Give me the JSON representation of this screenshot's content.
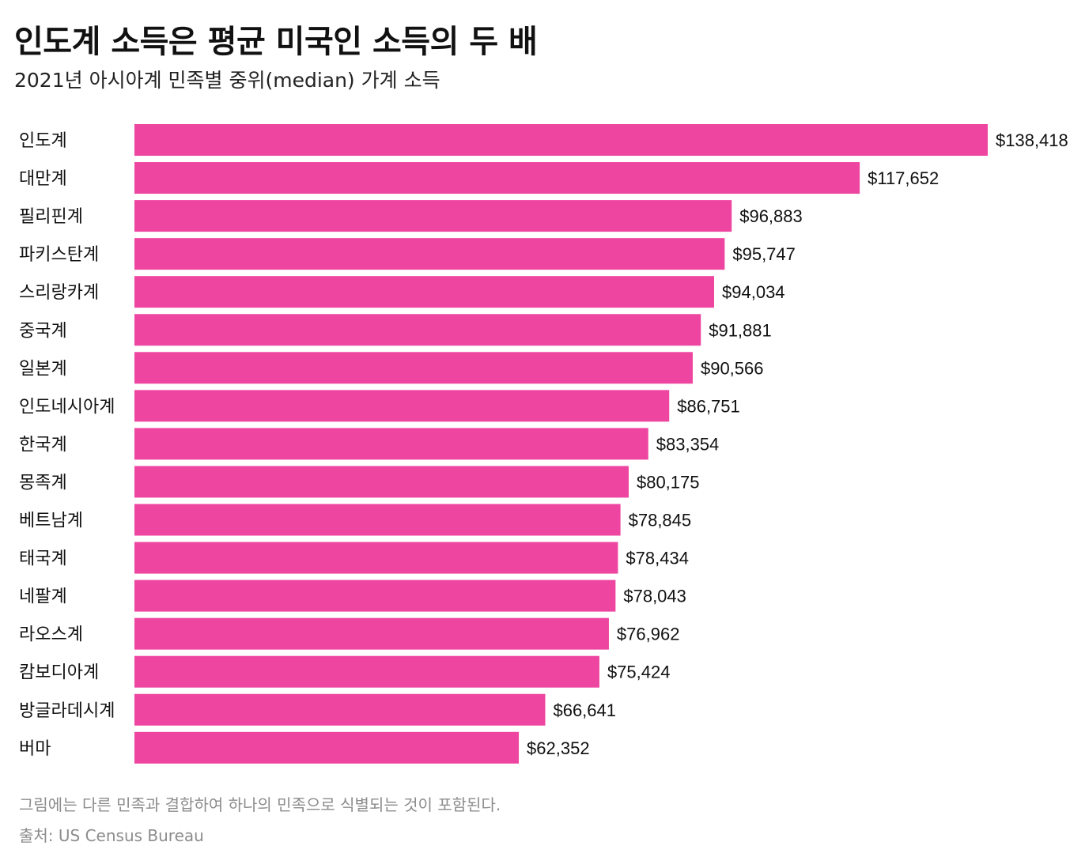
{
  "title": "인도계 소득은 평균 미국인 소득의 두 배",
  "subtitle": "2021년 아시아계 민족별 중위(median) 가계 소득",
  "footnote": "그림에는 다른 민족과 결합하여 하나의 민족으로 식별되는 것이 포함된다.",
  "source": "출처: US Census Bureau",
  "colors": {
    "bar": "#ee45a0",
    "text": "#111111",
    "muted": "#8c8c8c"
  },
  "chart_data": {
    "type": "bar",
    "orientation": "horizontal",
    "categories": [
      "인도계",
      "대만계",
      "필리핀계",
      "파키스탄계",
      "스리랑카계",
      "중국계",
      "일본계",
      "인도네시아계",
      "한국계",
      "몽족계",
      "베트남계",
      "태국계",
      "네팔계",
      "라오스계",
      "캄보디아계",
      "방글라데시계",
      "버마"
    ],
    "values": [
      138418,
      117652,
      96883,
      95747,
      94034,
      91881,
      90566,
      86751,
      83354,
      80175,
      78845,
      78434,
      78043,
      76962,
      75424,
      66641,
      62352
    ],
    "value_labels": [
      "$138,418",
      "$117,652",
      "$96,883",
      "$95,747",
      "$94,034",
      "$91,881",
      "$90,566",
      "$86,751",
      "$83,354",
      "$80,175",
      "$78,845",
      "$78,434",
      "$78,043",
      "$76,962",
      "$75,424",
      "$66,641",
      "$62,352"
    ],
    "xlim": [
      0,
      138418
    ],
    "grid": false,
    "legend": "none"
  }
}
